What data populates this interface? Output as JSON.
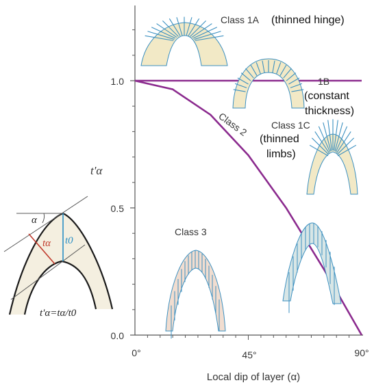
{
  "chart_data": {
    "type": "line",
    "xlabel": "Local dip of layer (α)",
    "ylabel": "t'α",
    "x_ticks": [
      "0°",
      "45°",
      "90°"
    ],
    "y_ticks": [
      "0.0",
      "0.5",
      "1.0"
    ],
    "xlim": [
      0,
      90
    ],
    "ylim": [
      0,
      1.27
    ],
    "series": [
      {
        "name": "1B",
        "x": [
          0,
          90
        ],
        "values": [
          1.0,
          1.0
        ]
      },
      {
        "name": "Class 2",
        "x": [
          0,
          15,
          30,
          45,
          60,
          75,
          90
        ],
        "values": [
          1.0,
          0.966,
          0.866,
          0.707,
          0.5,
          0.259,
          0.0
        ]
      }
    ]
  },
  "labels": {
    "class1a": "Class 1A",
    "class1a_note": "(thinned hinge)",
    "class1b": "1B",
    "class1b_note1": "(constant",
    "class1b_note2": "thickness)",
    "class1c": "Class 1C",
    "class1c_note1": "(thinned",
    "class1c_note2": "limbs)",
    "class2": "Class 2",
    "class3": "Class 3"
  },
  "inset": {
    "alpha": "α",
    "t_alpha": "tα",
    "t_zero": "t0",
    "formula": "t'α=tα/t0"
  },
  "colors": {
    "curve": "#8b2a8e",
    "fold_fill": "#f2e9c6",
    "fold_fill_teal": "#d8e6e6",
    "fold_fill_pink": "#f1ddd0",
    "dip_lines": "#3a8fc0",
    "axis": "#555555",
    "t_alpha": "#c0392b",
    "t_zero": "#2a8fc4"
  }
}
